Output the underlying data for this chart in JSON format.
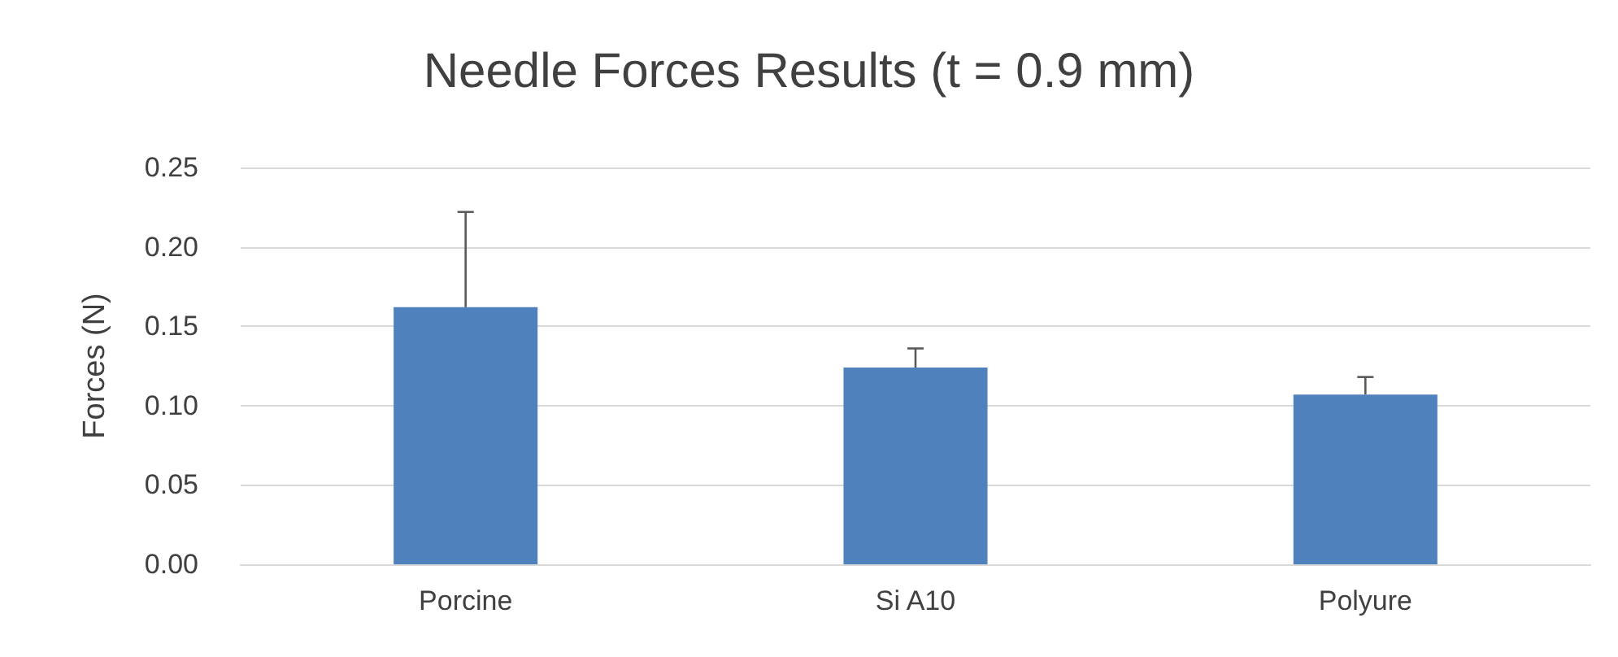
{
  "chart_data": {
    "type": "bar",
    "title": "Needle Forces Results (t = 0.9 mm)",
    "ylabel": "Forces (N)",
    "categories": [
      "Porcine",
      "Si A10",
      "Polyure"
    ],
    "values": [
      0.162,
      0.124,
      0.107
    ],
    "errors": [
      [
        0.162,
        0.222
      ],
      [
        0.124,
        0.136
      ],
      [
        0.107,
        0.118
      ]
    ],
    "color": "#4f81bd",
    "ylim": [
      0,
      0.25
    ],
    "yticks": [
      {
        "value": 0,
        "label": "0.00"
      },
      0.05,
      {
        "value": 0.1,
        "label": "0.10"
      },
      0.15,
      {
        "value": 0.2,
        "label": "0.20"
      },
      0.25
    ],
    "grid": "y"
  }
}
